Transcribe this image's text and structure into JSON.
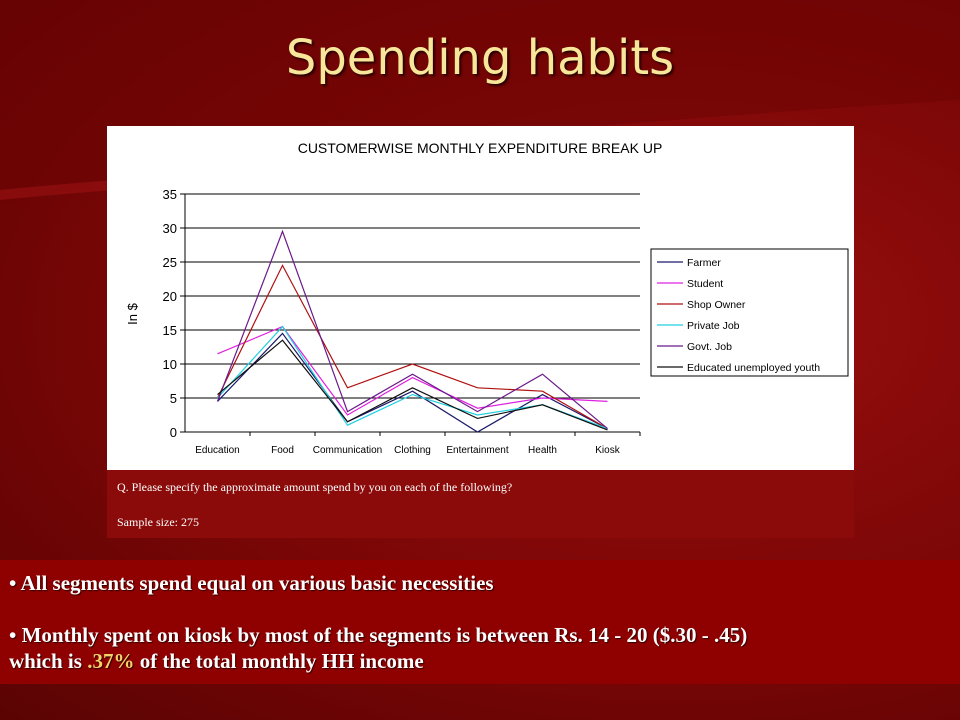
{
  "slide": {
    "title": "Spending habits"
  },
  "chart_data": {
    "type": "line",
    "title": "CUSTOMERWISE MONTHLY EXPENDITURE BREAK UP",
    "xlabel": "",
    "ylabel": "In $",
    "ylim": [
      0,
      35
    ],
    "yticks": [
      0,
      5,
      10,
      15,
      20,
      25,
      30,
      35
    ],
    "grid": true,
    "legend_position": "right",
    "categories": [
      "Education",
      "Food",
      "Communication",
      "Clothing",
      "Entertainment",
      "Health",
      "Kiosk"
    ],
    "series": [
      {
        "name": "Farmer",
        "color": "#1a1a6a",
        "values": [
          4.5,
          14.5,
          1.5,
          6.0,
          0.0,
          5.5,
          0.5
        ]
      },
      {
        "name": "Student",
        "color": "#e020e0",
        "values": [
          11.5,
          15.5,
          2.5,
          8.0,
          3.5,
          5.0,
          4.5
        ]
      },
      {
        "name": "Shop Owner",
        "color": "#b01010",
        "values": [
          5.0,
          24.5,
          6.5,
          10.0,
          6.5,
          6.0,
          0.5
        ]
      },
      {
        "name": "Private Job",
        "color": "#20d0e0",
        "values": [
          5.0,
          15.5,
          1.0,
          5.5,
          2.5,
          4.0,
          0.5
        ]
      },
      {
        "name": "Govt. Job",
        "color": "#6a1a8a",
        "values": [
          4.5,
          29.5,
          3.0,
          8.5,
          3.0,
          8.5,
          0.5
        ]
      },
      {
        "name": "Educated unemployed youth",
        "color": "#101010",
        "values": [
          5.5,
          13.5,
          1.5,
          6.5,
          2.0,
          4.0,
          0.3
        ]
      }
    ]
  },
  "notes": {
    "question": "Q. Please specify the approximate amount spend by you on each of the following?",
    "sample": "Sample size:  275"
  },
  "bullets": {
    "b1": "• All segments spend equal on various basic necessities",
    "b2_line1": "• Monthly spent on kiosk by most of the segments is between Rs. 14 - 20 ($.30 - .45)",
    "b2_which": "which is ",
    "b2_highlight": ".37%",
    "b2_rest": " of the total monthly HH income"
  }
}
